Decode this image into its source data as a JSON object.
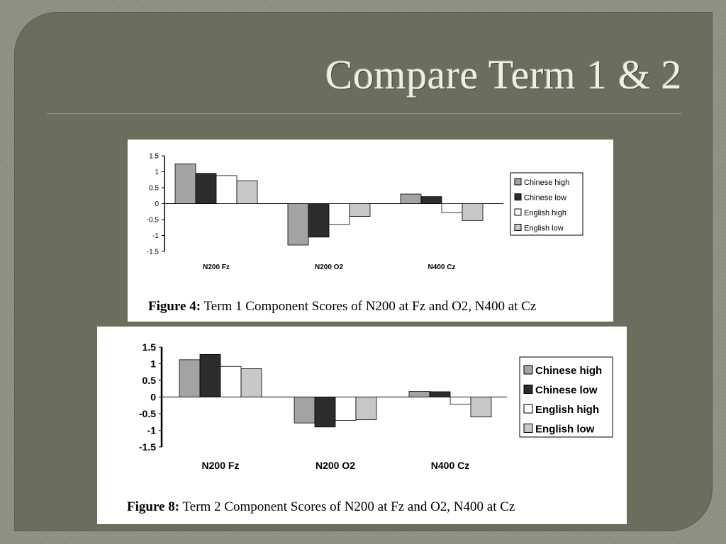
{
  "slide": {
    "title": "Compare Term 1 & 2"
  },
  "charts": {
    "colors": {
      "Chinese high": "#a3a3a3",
      "Chinese low": "#2c2c2c",
      "English high": "#ffffff",
      "English low": "#c8c8c8"
    }
  },
  "chart_data": [
    {
      "type": "bar",
      "caption_label": "Figure 4:",
      "caption_text": "Term 1 Component Scores of N200 at Fz and O2, N400 at Cz",
      "categories": [
        "N200 Fz",
        "N200 O2",
        "N400 Cz"
      ],
      "series": [
        {
          "name": "Chinese high",
          "values": [
            1.25,
            -1.3,
            0.3
          ]
        },
        {
          "name": "Chinese low",
          "values": [
            0.95,
            -1.05,
            0.22
          ]
        },
        {
          "name": "English high",
          "values": [
            0.88,
            -0.65,
            -0.28
          ]
        },
        {
          "name": "English low",
          "values": [
            0.72,
            -0.4,
            -0.53
          ]
        }
      ],
      "yticks": [
        "1.5",
        "1",
        "0.5",
        "0",
        "-0.5",
        "-1",
        "-1.5"
      ],
      "ylim": [
        -1.5,
        1.5
      ],
      "grid": false,
      "legend": "right"
    },
    {
      "type": "bar",
      "caption_label": "Figure 8:",
      "caption_text": "Term 2 Component Scores of N200 at Fz and O2, N400 at Cz",
      "categories": [
        "N200 Fz",
        "N200 O2",
        "N400 Cz"
      ],
      "series": [
        {
          "name": "Chinese high",
          "values": [
            1.12,
            -0.78,
            0.17
          ]
        },
        {
          "name": "Chinese low",
          "values": [
            1.28,
            -0.9,
            0.16
          ]
        },
        {
          "name": "English high",
          "values": [
            0.92,
            -0.7,
            -0.22
          ]
        },
        {
          "name": "English low",
          "values": [
            0.85,
            -0.68,
            -0.6
          ]
        }
      ],
      "yticks": [
        "1.5",
        "1",
        "0.5",
        "0",
        "-0.5",
        "-1",
        "-1.5"
      ],
      "ylim": [
        -1.5,
        1.5
      ],
      "grid": false,
      "legend": "right"
    }
  ]
}
